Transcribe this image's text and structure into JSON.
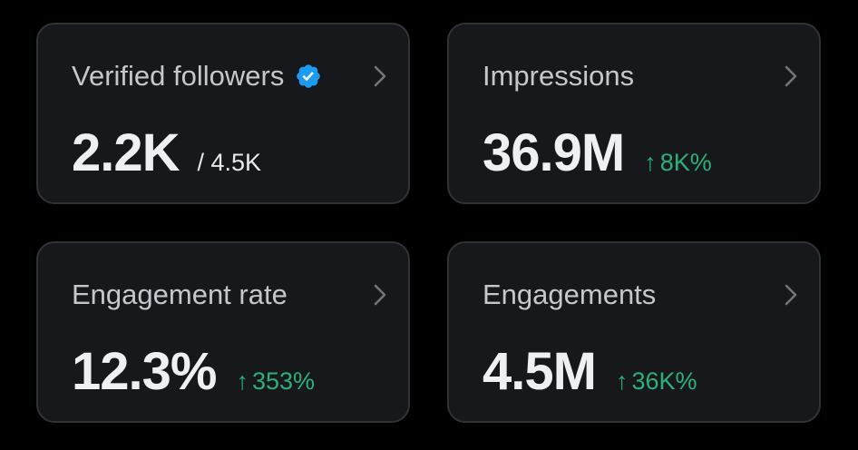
{
  "colors": {
    "background": "#000000",
    "card": "#16181c",
    "card_border": "#2f3336",
    "label": "#c4c8cc",
    "value": "#eef1f4",
    "positive": "#2bb07a",
    "verified_badge": "#1d9bf0"
  },
  "cards": [
    {
      "label": "Verified followers",
      "icon": "verified-badge-icon",
      "value": "2.2K",
      "secondary": "/ 4.5K"
    },
    {
      "label": "Impressions",
      "value": "36.9M",
      "delta_arrow": "↑",
      "delta": "8K%"
    },
    {
      "label": "Engagement rate",
      "value": "12.3%",
      "delta_arrow": "↑",
      "delta": "353%"
    },
    {
      "label": "Engagements",
      "value": "4.5M",
      "delta_arrow": "↑",
      "delta": "36K%"
    }
  ]
}
